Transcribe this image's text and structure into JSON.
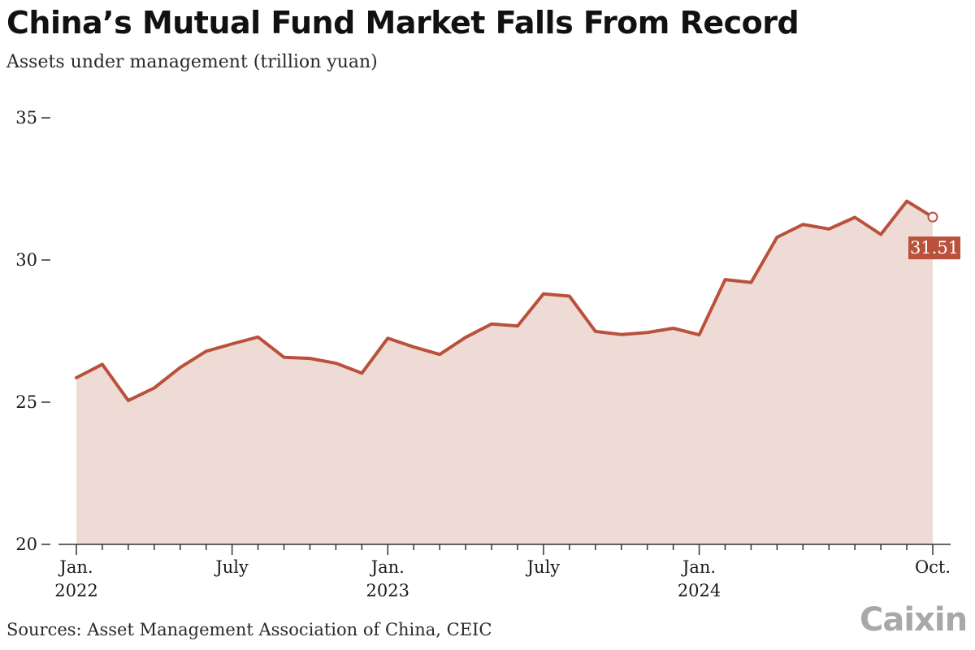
{
  "title": "China’s Mutual Fund Market Falls From Record",
  "subtitle": "Assets under management (trillion yuan)",
  "source": "Sources: Asset Management Association of China, CEIC",
  "logo": "Caixin",
  "colors": {
    "line": "#b9513c",
    "area": "#efdbd5",
    "label_bg": "#b9513c",
    "axis": "#333333"
  },
  "chart_data": {
    "type": "area",
    "x": [
      "2022-01",
      "2022-02",
      "2022-03",
      "2022-04",
      "2022-05",
      "2022-06",
      "2022-07",
      "2022-08",
      "2022-09",
      "2022-10",
      "2022-11",
      "2022-12",
      "2023-01",
      "2023-02",
      "2023-03",
      "2023-04",
      "2023-05",
      "2023-06",
      "2023-07",
      "2023-08",
      "2023-09",
      "2023-10",
      "2023-11",
      "2023-12",
      "2024-01",
      "2024-02",
      "2024-03",
      "2024-04",
      "2024-05",
      "2024-06",
      "2024-07",
      "2024-08",
      "2024-09",
      "2024-10"
    ],
    "series": [
      {
        "values": [
          25.86,
          26.33,
          25.06,
          25.5,
          26.22,
          26.79,
          27.05,
          27.29,
          26.58,
          26.54,
          26.37,
          26.02,
          27.25,
          26.94,
          26.68,
          27.28,
          27.75,
          27.68,
          28.81,
          28.73,
          27.49,
          27.38,
          27.45,
          27.6,
          27.37,
          29.31,
          29.21,
          30.8,
          31.25,
          31.09,
          31.5,
          30.9,
          32.07,
          31.51
        ]
      }
    ],
    "ylim": [
      20,
      35
    ],
    "yticks": [
      35,
      30,
      25,
      20
    ],
    "xtick_labels": [
      {
        "x": "2022-01",
        "line1": "Jan.",
        "line2": "2022"
      },
      {
        "x": "2022-07",
        "line1": "July",
        "line2": ""
      },
      {
        "x": "2023-01",
        "line1": "Jan.",
        "line2": "2023"
      },
      {
        "x": "2023-07",
        "line1": "July",
        "line2": ""
      },
      {
        "x": "2024-01",
        "line1": "Jan.",
        "line2": "2024"
      },
      {
        "x": "2024-10",
        "line1": "Oct.",
        "line2": ""
      }
    ],
    "annotation": {
      "x": "2024-10",
      "value": "31.51"
    },
    "grid": false
  }
}
